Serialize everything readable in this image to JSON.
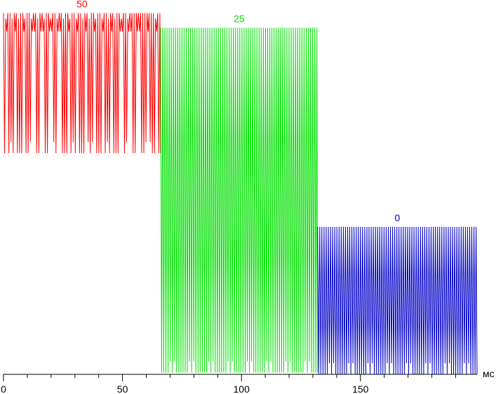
{
  "chart_data": {
    "type": "line",
    "title": "",
    "xlabel": "мс",
    "ylabel": "",
    "xlim": [
      0,
      199
    ],
    "ylim": [
      0,
      100
    ],
    "grid": false,
    "x_ticks_major": [
      0,
      50,
      100,
      150
    ],
    "series": [
      {
        "name": "50",
        "color": "#ff0000",
        "x_range": [
          0,
          66
        ],
        "y_high": 98,
        "y_mid_dip": 93,
        "y_low": 60,
        "period_ms": 0.9
      },
      {
        "name": "25",
        "color": "#00e000",
        "x_range": [
          66,
          132
        ],
        "y_high": 94,
        "y_low": 0.5,
        "period_ms": 0.9
      },
      {
        "name": "0",
        "color": "#0000c8",
        "x_range": [
          132,
          199
        ],
        "y_high": 40,
        "y_low": 0,
        "period_ms": 0.9
      }
    ]
  }
}
